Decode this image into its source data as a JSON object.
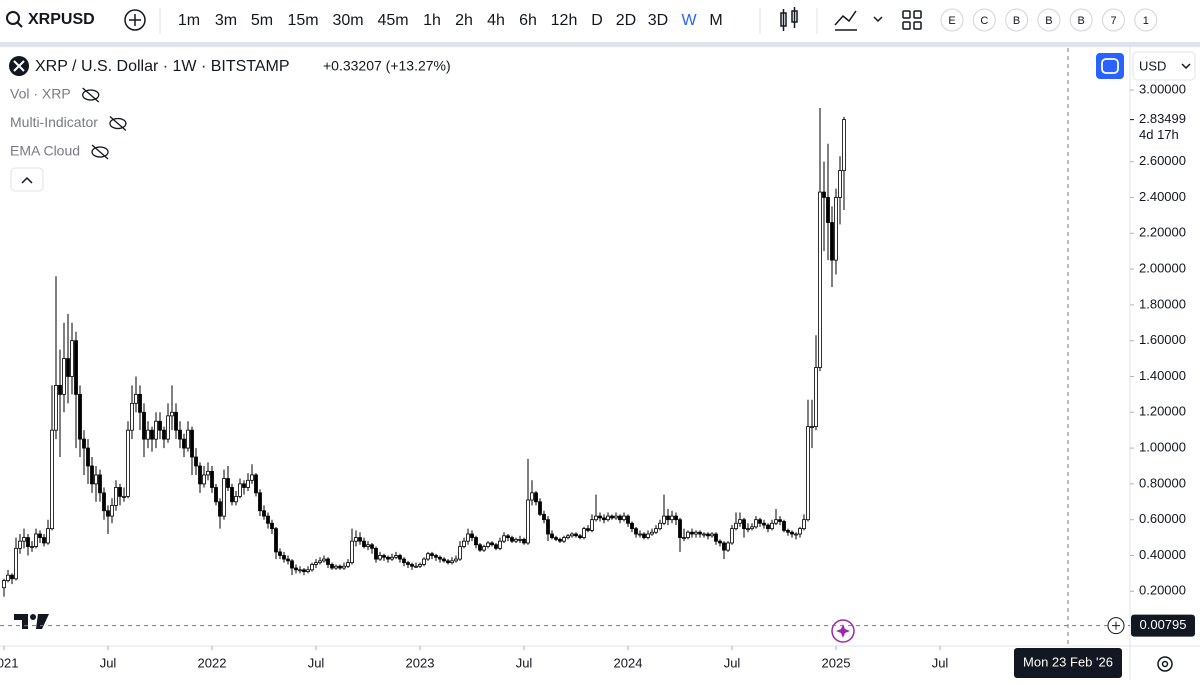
{
  "ui": {
    "symbol": "XRPUSD",
    "intervals": [
      "1m",
      "3m",
      "5m",
      "15m",
      "30m",
      "45m",
      "1h",
      "2h",
      "4h",
      "6h",
      "12h",
      "D",
      "2D",
      "3D",
      "W",
      "M"
    ],
    "active_interval": "W",
    "circle_buttons": [
      "E",
      "C",
      "B",
      "B",
      "B",
      "7",
      "1"
    ],
    "indicators": [
      "Vol · XRP",
      "Multi-Indicator",
      "EMA Cloud"
    ],
    "currency": "USD"
  },
  "chart_data": {
    "type": "candlestick",
    "title": "XRP / U.S. Dollar · 1W · BITSTAMP",
    "change": "+0.33207 (+13.27%)",
    "last_price": 2.83499,
    "countdown": "4d 17h",
    "crosshair_y": 0.00795,
    "crosshair_x": {
      "value": 266,
      "label": "Mon 23 Feb '26"
    },
    "up_color": "#ffffff",
    "down_color": "#000000",
    "border_color": "#000000",
    "xlim": [
      -1,
      281
    ],
    "xticks": [
      {
        "value": 0,
        "label": "2021"
      },
      {
        "value": 26,
        "label": "Jul"
      },
      {
        "value": 52,
        "label": "2022"
      },
      {
        "value": 78,
        "label": "Jul"
      },
      {
        "value": 104,
        "label": "2023"
      },
      {
        "value": 130,
        "label": "Jul"
      },
      {
        "value": 156,
        "label": "2024"
      },
      {
        "value": 182,
        "label": "Jul"
      },
      {
        "value": 208,
        "label": "2025"
      },
      {
        "value": 234,
        "label": "Jul"
      }
    ],
    "ylim": [
      -0.1,
      3.235
    ],
    "yticks": [
      {
        "value": 3.0,
        "label": "3.00000"
      },
      {
        "value": 2.6,
        "label": "2.60000"
      },
      {
        "value": 2.4,
        "label": "2.40000"
      },
      {
        "value": 2.2,
        "label": "2.20000"
      },
      {
        "value": 2.0,
        "label": "2.00000"
      },
      {
        "value": 1.8,
        "label": "1.80000"
      },
      {
        "value": 1.6,
        "label": "1.60000"
      },
      {
        "value": 1.4,
        "label": "1.40000"
      },
      {
        "value": 1.2,
        "label": "1.20000"
      },
      {
        "value": 1.0,
        "label": "1.00000"
      },
      {
        "value": 0.8,
        "label": "0.80000"
      },
      {
        "value": 0.6,
        "label": "0.60000"
      },
      {
        "value": 0.4,
        "label": "0.40000"
      },
      {
        "value": 0.2,
        "label": "0.20000"
      }
    ],
    "candles": [
      [
        0.22,
        0.27,
        0.17,
        0.26
      ],
      [
        0.26,
        0.32,
        0.25,
        0.29
      ],
      [
        0.29,
        0.3,
        0.24,
        0.27
      ],
      [
        0.27,
        0.5,
        0.26,
        0.44
      ],
      [
        0.44,
        0.52,
        0.41,
        0.48
      ],
      [
        0.48,
        0.55,
        0.44,
        0.5
      ],
      [
        0.5,
        0.52,
        0.4,
        0.45
      ],
      [
        0.45,
        0.48,
        0.42,
        0.45
      ],
      [
        0.45,
        0.55,
        0.44,
        0.52
      ],
      [
        0.52,
        0.54,
        0.47,
        0.5
      ],
      [
        0.5,
        0.52,
        0.45,
        0.47
      ],
      [
        0.47,
        0.6,
        0.46,
        0.55
      ],
      [
        0.55,
        1.35,
        0.54,
        1.1
      ],
      [
        1.1,
        1.96,
        1.05,
        1.35
      ],
      [
        1.35,
        1.55,
        0.95,
        1.3
      ],
      [
        1.3,
        1.7,
        1.2,
        1.5
      ],
      [
        1.5,
        1.75,
        1.25,
        1.4
      ],
      [
        1.4,
        1.7,
        1.3,
        1.6
      ],
      [
        1.6,
        1.65,
        1.0,
        1.3
      ],
      [
        1.3,
        1.35,
        0.95,
        1.05
      ],
      [
        1.05,
        1.1,
        0.85,
        1.0
      ],
      [
        1.0,
        1.05,
        0.8,
        0.9
      ],
      [
        0.9,
        0.95,
        0.75,
        0.8
      ],
      [
        0.8,
        0.9,
        0.7,
        0.85
      ],
      [
        0.85,
        0.88,
        0.7,
        0.75
      ],
      [
        0.75,
        0.78,
        0.6,
        0.65
      ],
      [
        0.65,
        0.68,
        0.52,
        0.62
      ],
      [
        0.62,
        0.72,
        0.58,
        0.68
      ],
      [
        0.68,
        0.82,
        0.65,
        0.78
      ],
      [
        0.78,
        0.8,
        0.68,
        0.73
      ],
      [
        0.73,
        0.78,
        0.7,
        0.73
      ],
      [
        0.73,
        1.15,
        0.72,
        1.1
      ],
      [
        1.1,
        1.35,
        1.05,
        1.25
      ],
      [
        1.25,
        1.4,
        1.2,
        1.3
      ],
      [
        1.3,
        1.35,
        1.1,
        1.2
      ],
      [
        1.2,
        1.25,
        0.95,
        1.05
      ],
      [
        1.05,
        1.15,
        1.0,
        1.1
      ],
      [
        1.1,
        1.12,
        0.98,
        1.05
      ],
      [
        1.05,
        1.2,
        1.0,
        1.15
      ],
      [
        1.15,
        1.2,
        1.05,
        1.1
      ],
      [
        1.1,
        1.12,
        1.0,
        1.05
      ],
      [
        1.05,
        1.25,
        1.03,
        1.18
      ],
      [
        1.18,
        1.35,
        1.1,
        1.2
      ],
      [
        1.2,
        1.25,
        1.05,
        1.1
      ],
      [
        1.1,
        1.15,
        1.0,
        1.05
      ],
      [
        1.05,
        1.08,
        0.95,
        1.0
      ],
      [
        1.0,
        1.15,
        0.98,
        1.1
      ],
      [
        1.1,
        1.12,
        0.85,
        0.95
      ],
      [
        0.95,
        1.0,
        0.85,
        0.9
      ],
      [
        0.9,
        0.92,
        0.75,
        0.8
      ],
      [
        0.8,
        0.9,
        0.78,
        0.85
      ],
      [
        0.85,
        0.92,
        0.82,
        0.87
      ],
      [
        0.87,
        0.9,
        0.75,
        0.78
      ],
      [
        0.78,
        0.8,
        0.68,
        0.7
      ],
      [
        0.7,
        0.72,
        0.55,
        0.62
      ],
      [
        0.62,
        0.88,
        0.6,
        0.83
      ],
      [
        0.83,
        0.9,
        0.76,
        0.78
      ],
      [
        0.78,
        0.8,
        0.68,
        0.7
      ],
      [
        0.7,
        0.76,
        0.68,
        0.73
      ],
      [
        0.73,
        0.83,
        0.72,
        0.8
      ],
      [
        0.8,
        0.82,
        0.74,
        0.78
      ],
      [
        0.78,
        0.86,
        0.76,
        0.82
      ],
      [
        0.82,
        0.91,
        0.8,
        0.85
      ],
      [
        0.85,
        0.86,
        0.73,
        0.75
      ],
      [
        0.75,
        0.77,
        0.62,
        0.65
      ],
      [
        0.65,
        0.68,
        0.6,
        0.62
      ],
      [
        0.62,
        0.64,
        0.55,
        0.58
      ],
      [
        0.58,
        0.6,
        0.52,
        0.55
      ],
      [
        0.55,
        0.56,
        0.38,
        0.42
      ],
      [
        0.42,
        0.44,
        0.38,
        0.4
      ],
      [
        0.4,
        0.42,
        0.36,
        0.38
      ],
      [
        0.38,
        0.4,
        0.35,
        0.37
      ],
      [
        0.37,
        0.38,
        0.29,
        0.33
      ],
      [
        0.33,
        0.35,
        0.3,
        0.32
      ],
      [
        0.32,
        0.34,
        0.3,
        0.32
      ],
      [
        0.32,
        0.33,
        0.29,
        0.31
      ],
      [
        0.31,
        0.34,
        0.3,
        0.32
      ],
      [
        0.32,
        0.36,
        0.31,
        0.35
      ],
      [
        0.35,
        0.38,
        0.33,
        0.36
      ],
      [
        0.36,
        0.39,
        0.35,
        0.37
      ],
      [
        0.37,
        0.4,
        0.36,
        0.38
      ],
      [
        0.38,
        0.39,
        0.33,
        0.35
      ],
      [
        0.35,
        0.36,
        0.32,
        0.33
      ],
      [
        0.33,
        0.35,
        0.32,
        0.34
      ],
      [
        0.34,
        0.35,
        0.32,
        0.33
      ],
      [
        0.33,
        0.36,
        0.32,
        0.34
      ],
      [
        0.34,
        0.38,
        0.33,
        0.36
      ],
      [
        0.36,
        0.55,
        0.35,
        0.48
      ],
      [
        0.48,
        0.54,
        0.45,
        0.5
      ],
      [
        0.5,
        0.53,
        0.46,
        0.48
      ],
      [
        0.48,
        0.5,
        0.44,
        0.45
      ],
      [
        0.45,
        0.48,
        0.43,
        0.46
      ],
      [
        0.46,
        0.47,
        0.41,
        0.44
      ],
      [
        0.44,
        0.45,
        0.36,
        0.38
      ],
      [
        0.38,
        0.42,
        0.37,
        0.4
      ],
      [
        0.4,
        0.41,
        0.37,
        0.39
      ],
      [
        0.39,
        0.4,
        0.36,
        0.38
      ],
      [
        0.38,
        0.41,
        0.37,
        0.39
      ],
      [
        0.39,
        0.42,
        0.38,
        0.4
      ],
      [
        0.4,
        0.41,
        0.36,
        0.38
      ],
      [
        0.38,
        0.39,
        0.34,
        0.36
      ],
      [
        0.36,
        0.37,
        0.33,
        0.35
      ],
      [
        0.35,
        0.36,
        0.32,
        0.34
      ],
      [
        0.34,
        0.36,
        0.33,
        0.34
      ],
      [
        0.34,
        0.36,
        0.33,
        0.35
      ],
      [
        0.35,
        0.39,
        0.34,
        0.38
      ],
      [
        0.38,
        0.42,
        0.37,
        0.41
      ],
      [
        0.41,
        0.42,
        0.38,
        0.4
      ],
      [
        0.4,
        0.41,
        0.37,
        0.39
      ],
      [
        0.39,
        0.4,
        0.36,
        0.38
      ],
      [
        0.38,
        0.39,
        0.36,
        0.37
      ],
      [
        0.37,
        0.38,
        0.35,
        0.36
      ],
      [
        0.36,
        0.39,
        0.35,
        0.37
      ],
      [
        0.37,
        0.4,
        0.36,
        0.38
      ],
      [
        0.38,
        0.48,
        0.37,
        0.45
      ],
      [
        0.45,
        0.5,
        0.44,
        0.48
      ],
      [
        0.48,
        0.55,
        0.46,
        0.52
      ],
      [
        0.52,
        0.54,
        0.48,
        0.5
      ],
      [
        0.5,
        0.51,
        0.44,
        0.46
      ],
      [
        0.46,
        0.47,
        0.42,
        0.43
      ],
      [
        0.43,
        0.46,
        0.42,
        0.45
      ],
      [
        0.45,
        0.48,
        0.44,
        0.47
      ],
      [
        0.47,
        0.48,
        0.45,
        0.46
      ],
      [
        0.46,
        0.47,
        0.43,
        0.44
      ],
      [
        0.44,
        0.5,
        0.43,
        0.48
      ],
      [
        0.48,
        0.53,
        0.47,
        0.51
      ],
      [
        0.51,
        0.52,
        0.48,
        0.5
      ],
      [
        0.5,
        0.51,
        0.47,
        0.48
      ],
      [
        0.48,
        0.5,
        0.47,
        0.49
      ],
      [
        0.49,
        0.51,
        0.47,
        0.49
      ],
      [
        0.49,
        0.5,
        0.46,
        0.47
      ],
      [
        0.47,
        0.94,
        0.46,
        0.71
      ],
      [
        0.71,
        0.82,
        0.68,
        0.75
      ],
      [
        0.75,
        0.76,
        0.68,
        0.7
      ],
      [
        0.7,
        0.72,
        0.62,
        0.63
      ],
      [
        0.63,
        0.65,
        0.58,
        0.6
      ],
      [
        0.6,
        0.62,
        0.48,
        0.52
      ],
      [
        0.52,
        0.54,
        0.49,
        0.5
      ],
      [
        0.5,
        0.51,
        0.48,
        0.49
      ],
      [
        0.49,
        0.5,
        0.47,
        0.48
      ],
      [
        0.48,
        0.51,
        0.47,
        0.5
      ],
      [
        0.5,
        0.52,
        0.49,
        0.51
      ],
      [
        0.51,
        0.53,
        0.5,
        0.52
      ],
      [
        0.52,
        0.53,
        0.5,
        0.51
      ],
      [
        0.51,
        0.52,
        0.49,
        0.5
      ],
      [
        0.5,
        0.56,
        0.49,
        0.55
      ],
      [
        0.55,
        0.57,
        0.53,
        0.54
      ],
      [
        0.54,
        0.63,
        0.53,
        0.6
      ],
      [
        0.6,
        0.74,
        0.59,
        0.62
      ],
      [
        0.62,
        0.64,
        0.59,
        0.61
      ],
      [
        0.61,
        0.63,
        0.58,
        0.6
      ],
      [
        0.6,
        0.64,
        0.59,
        0.62
      ],
      [
        0.62,
        0.63,
        0.6,
        0.61
      ],
      [
        0.61,
        0.64,
        0.6,
        0.62
      ],
      [
        0.62,
        0.63,
        0.58,
        0.6
      ],
      [
        0.6,
        0.64,
        0.59,
        0.62
      ],
      [
        0.62,
        0.63,
        0.56,
        0.58
      ],
      [
        0.58,
        0.59,
        0.53,
        0.55
      ],
      [
        0.55,
        0.56,
        0.5,
        0.52
      ],
      [
        0.52,
        0.54,
        0.5,
        0.52
      ],
      [
        0.52,
        0.53,
        0.49,
        0.5
      ],
      [
        0.5,
        0.54,
        0.49,
        0.52
      ],
      [
        0.52,
        0.55,
        0.51,
        0.53
      ],
      [
        0.53,
        0.57,
        0.52,
        0.55
      ],
      [
        0.55,
        0.6,
        0.54,
        0.58
      ],
      [
        0.58,
        0.74,
        0.57,
        0.62
      ],
      [
        0.62,
        0.66,
        0.57,
        0.6
      ],
      [
        0.6,
        0.65,
        0.58,
        0.62
      ],
      [
        0.62,
        0.64,
        0.57,
        0.6
      ],
      [
        0.6,
        0.61,
        0.42,
        0.5
      ],
      [
        0.5,
        0.55,
        0.48,
        0.5
      ],
      [
        0.5,
        0.54,
        0.49,
        0.53
      ],
      [
        0.53,
        0.55,
        0.5,
        0.52
      ],
      [
        0.52,
        0.54,
        0.5,
        0.53
      ],
      [
        0.53,
        0.54,
        0.5,
        0.52
      ],
      [
        0.52,
        0.53,
        0.5,
        0.52
      ],
      [
        0.52,
        0.53,
        0.49,
        0.51
      ],
      [
        0.51,
        0.53,
        0.5,
        0.52
      ],
      [
        0.52,
        0.53,
        0.46,
        0.48
      ],
      [
        0.48,
        0.49,
        0.45,
        0.47
      ],
      [
        0.47,
        0.48,
        0.38,
        0.43
      ],
      [
        0.43,
        0.48,
        0.42,
        0.47
      ],
      [
        0.47,
        0.57,
        0.46,
        0.55
      ],
      [
        0.55,
        0.64,
        0.54,
        0.58
      ],
      [
        0.58,
        0.64,
        0.56,
        0.6
      ],
      [
        0.6,
        0.61,
        0.5,
        0.55
      ],
      [
        0.55,
        0.58,
        0.53,
        0.55
      ],
      [
        0.55,
        0.58,
        0.54,
        0.56
      ],
      [
        0.56,
        0.62,
        0.55,
        0.6
      ],
      [
        0.6,
        0.61,
        0.56,
        0.58
      ],
      [
        0.58,
        0.6,
        0.55,
        0.57
      ],
      [
        0.57,
        0.58,
        0.53,
        0.55
      ],
      [
        0.55,
        0.6,
        0.54,
        0.58
      ],
      [
        0.58,
        0.66,
        0.57,
        0.6
      ],
      [
        0.6,
        0.62,
        0.57,
        0.59
      ],
      [
        0.59,
        0.6,
        0.53,
        0.54
      ],
      [
        0.54,
        0.55,
        0.51,
        0.53
      ],
      [
        0.53,
        0.54,
        0.5,
        0.52
      ],
      [
        0.52,
        0.53,
        0.49,
        0.52
      ],
      [
        0.52,
        0.56,
        0.5,
        0.55
      ],
      [
        0.55,
        0.63,
        0.54,
        0.6
      ],
      [
        0.6,
        1.27,
        0.59,
        1.12
      ],
      [
        1.12,
        1.27,
        1.0,
        1.12
      ],
      [
        1.12,
        1.63,
        1.1,
        1.45
      ],
      [
        1.45,
        2.9,
        1.43,
        2.43
      ],
      [
        2.43,
        2.6,
        2.1,
        2.4
      ],
      [
        2.4,
        2.7,
        2.05,
        2.26
      ],
      [
        2.26,
        2.35,
        1.9,
        2.05
      ],
      [
        2.05,
        2.45,
        1.97,
        2.4
      ],
      [
        2.4,
        2.63,
        2.25,
        2.55
      ],
      [
        2.55,
        2.85,
        2.33,
        2.83499
      ]
    ]
  }
}
